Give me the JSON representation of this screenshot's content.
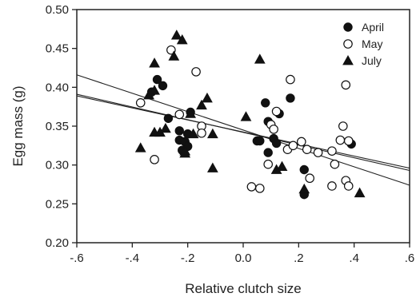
{
  "chart_data": {
    "type": "scatter",
    "xlabel": "Relative clutch size",
    "ylabel": "Egg mass (g)",
    "xlim": [
      -0.6,
      0.6
    ],
    "ylim": [
      0.2,
      0.5
    ],
    "x_ticks": [
      -0.6,
      -0.4,
      -0.2,
      0.0,
      0.2,
      0.4,
      0.6
    ],
    "x_tick_labels": [
      "-.6",
      "-.4",
      "-.2",
      "0.0",
      ".2",
      ".4",
      ".6"
    ],
    "y_ticks": [
      0.2,
      0.25,
      0.3,
      0.35,
      0.4,
      0.45,
      0.5
    ],
    "y_tick_labels": [
      "0.20",
      "0.25",
      "0.30",
      "0.35",
      "0.40",
      "0.45",
      "0.50"
    ],
    "legend_position": "top-right",
    "series": [
      {
        "name": "April",
        "marker": "filled-circle",
        "points": [
          [
            -0.33,
            0.394
          ],
          [
            -0.31,
            0.41
          ],
          [
            -0.29,
            0.402
          ],
          [
            -0.27,
            0.36
          ],
          [
            -0.23,
            0.344
          ],
          [
            -0.23,
            0.332
          ],
          [
            -0.21,
            0.33
          ],
          [
            -0.22,
            0.319
          ],
          [
            -0.2,
            0.34
          ],
          [
            -0.19,
            0.368
          ],
          [
            -0.2,
            0.324
          ],
          [
            0.05,
            0.331
          ],
          [
            0.06,
            0.331
          ],
          [
            0.08,
            0.38
          ],
          [
            0.09,
            0.356
          ],
          [
            0.09,
            0.316
          ],
          [
            0.11,
            0.334
          ],
          [
            0.12,
            0.328
          ],
          [
            0.13,
            0.366
          ],
          [
            0.17,
            0.386
          ],
          [
            0.22,
            0.294
          ],
          [
            0.22,
            0.262
          ],
          [
            0.39,
            0.327
          ]
        ]
      },
      {
        "name": "May",
        "marker": "open-circle",
        "points": [
          [
            -0.37,
            0.38
          ],
          [
            -0.32,
            0.307
          ],
          [
            -0.26,
            0.448
          ],
          [
            -0.23,
            0.365
          ],
          [
            -0.17,
            0.42
          ],
          [
            -0.15,
            0.35
          ],
          [
            -0.15,
            0.341
          ],
          [
            0.03,
            0.272
          ],
          [
            0.06,
            0.27
          ],
          [
            0.09,
            0.301
          ],
          [
            0.1,
            0.352
          ],
          [
            0.11,
            0.346
          ],
          [
            0.12,
            0.369
          ],
          [
            0.16,
            0.32
          ],
          [
            0.17,
            0.41
          ],
          [
            0.18,
            0.325
          ],
          [
            0.21,
            0.33
          ],
          [
            0.23,
            0.32
          ],
          [
            0.24,
            0.283
          ],
          [
            0.27,
            0.316
          ],
          [
            0.32,
            0.318
          ],
          [
            0.32,
            0.273
          ],
          [
            0.33,
            0.301
          ],
          [
            0.35,
            0.332
          ],
          [
            0.36,
            0.35
          ],
          [
            0.37,
            0.403
          ],
          [
            0.37,
            0.28
          ],
          [
            0.38,
            0.273
          ],
          [
            0.38,
            0.331
          ]
        ]
      },
      {
        "name": "July",
        "marker": "filled-triangle",
        "points": [
          [
            -0.37,
            0.322
          ],
          [
            -0.34,
            0.39
          ],
          [
            -0.32,
            0.431
          ],
          [
            -0.32,
            0.396
          ],
          [
            -0.32,
            0.342
          ],
          [
            -0.3,
            0.342
          ],
          [
            -0.28,
            0.347
          ],
          [
            -0.25,
            0.44
          ],
          [
            -0.24,
            0.467
          ],
          [
            -0.22,
            0.461
          ],
          [
            -0.21,
            0.315
          ],
          [
            -0.21,
            0.318
          ],
          [
            -0.19,
            0.366
          ],
          [
            -0.18,
            0.34
          ],
          [
            -0.15,
            0.377
          ],
          [
            -0.13,
            0.386
          ],
          [
            -0.11,
            0.296
          ],
          [
            -0.11,
            0.34
          ],
          [
            0.01,
            0.362
          ],
          [
            0.06,
            0.436
          ],
          [
            0.12,
            0.294
          ],
          [
            0.14,
            0.298
          ],
          [
            0.22,
            0.269
          ],
          [
            0.42,
            0.264
          ]
        ]
      }
    ],
    "regression_lines": [
      {
        "x": [
          -0.6,
          0.6
        ],
        "y": [
          0.416,
          0.274
        ]
      },
      {
        "x": [
          -0.6,
          0.6
        ],
        "y": [
          0.389,
          0.296
        ]
      },
      {
        "x": [
          -0.6,
          0.6
        ],
        "y": [
          0.391,
          0.293
        ]
      }
    ]
  }
}
